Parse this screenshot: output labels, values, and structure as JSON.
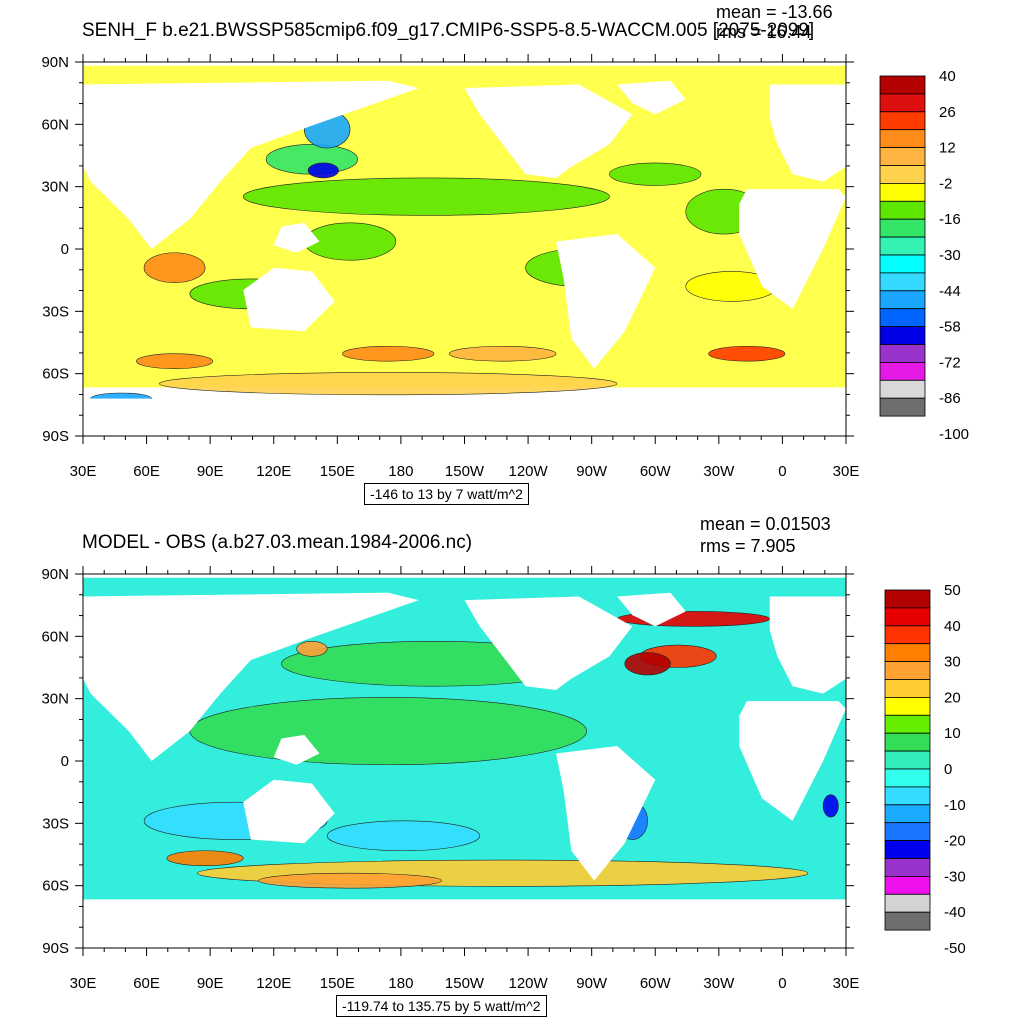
{
  "panels": [
    {
      "title": "SENH_F b.e21.BWSSP585cmip6.f09_g17.CMIP6-SSP5-8.5-WACCM.005 [2075-2099]",
      "mean": "mean = -13.66",
      "rms": "rms = 16.44",
      "range": "-146 to 13 by 7 watt/m^2",
      "lat_ticks": [
        "90N",
        "60N",
        "30N",
        "0",
        "30S",
        "60S",
        "90S"
      ],
      "lon_ticks": [
        "30E",
        "60E",
        "90E",
        "120E",
        "150E",
        "180",
        "150W",
        "120W",
        "90W",
        "60W",
        "30W",
        "0",
        "30E"
      ],
      "colorbar_labels": [
        "40",
        "26",
        "12",
        "-2",
        "-16",
        "-30",
        "-44",
        "-58",
        "-72",
        "-86",
        "-100"
      ],
      "colorbar_colors": [
        "#b30000",
        "#dd0f0f",
        "#ff3c00",
        "#ff8c1a",
        "#ffb340",
        "#ffd24d",
        "#ffff00",
        "#5ce600",
        "#33e666",
        "#33f2b3",
        "#00ffff",
        "#33d9ff",
        "#1aa6ff",
        "#0066ff",
        "#0000e6",
        "#9933cc",
        "#e61ae6",
        "#d9d9d9",
        "#6e6e6e"
      ],
      "ocean_base_color": "#ffff4d"
    },
    {
      "title": "MODEL - OBS (a.b27.03.mean.1984-2006.nc)",
      "mean": "mean = 0.01503",
      "rms": "rms = 7.905",
      "range": "-119.74 to 135.75 by 5 watt/m^2",
      "lat_ticks": [
        "90N",
        "60N",
        "30N",
        "0",
        "30S",
        "60S",
        "90S"
      ],
      "lon_ticks": [
        "30E",
        "60E",
        "90E",
        "120E",
        "150E",
        "180",
        "150W",
        "120W",
        "90W",
        "60W",
        "30W",
        "0",
        "30E"
      ],
      "colorbar_labels": [
        "50",
        "40",
        "30",
        "20",
        "10",
        "0",
        "-10",
        "-20",
        "-30",
        "-40",
        "-50"
      ],
      "colorbar_colors": [
        "#b30000",
        "#e60000",
        "#ff3300",
        "#ff8000",
        "#ffa033",
        "#ffcc33",
        "#ffff00",
        "#66ee00",
        "#33dd55",
        "#33eebb",
        "#33ffee",
        "#33ddff",
        "#1aaaff",
        "#1a77ff",
        "#0000ee",
        "#9933cc",
        "#ee11ee",
        "#d3d3d3",
        "#6e6e6e"
      ],
      "ocean_base_color": "#33eedd"
    }
  ]
}
